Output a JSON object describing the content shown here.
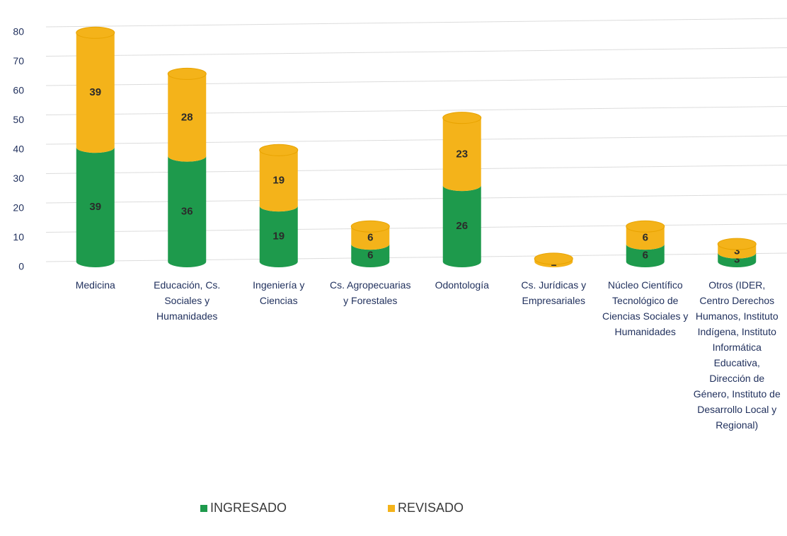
{
  "chart_data": {
    "type": "stacked_bar",
    "categories": [
      "Medicina",
      "Educación, Cs. Sociales y Humanidades",
      "Ingeniería y Ciencias",
      "Cs. Agropecuarias y Forestales",
      "Odontología",
      "Cs. Jurídicas y Empresariales",
      "Núcleo Científico Tecnológico de Ciencias Sociales y Humanidades",
      "Otros (IDER, Centro Derechos Humanos, Instituto Indígena, Instituto Informática Educativa, Dirección de Género, Instituto de Desarrollo Local y Regional)"
    ],
    "series": [
      {
        "name": "INGRESADO",
        "color": "#1e9a4c",
        "values": [
          39,
          36,
          19,
          6,
          26,
          0,
          6,
          3
        ]
      },
      {
        "name": "REVISADO",
        "color": "#f4b31a",
        "values": [
          39,
          28,
          19,
          6,
          23,
          1,
          6,
          3
        ]
      }
    ],
    "ylim": [
      0,
      80
    ],
    "yticks": [
      0,
      10,
      20,
      30,
      40,
      50,
      60,
      70,
      80
    ],
    "grid": true,
    "legend": "bottom"
  }
}
